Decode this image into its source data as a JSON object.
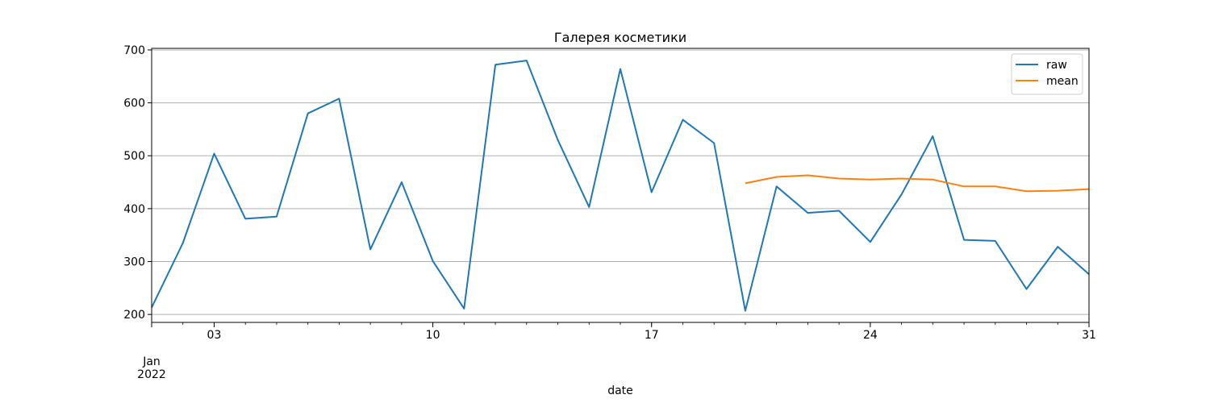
{
  "chart_data": {
    "type": "line",
    "title": "Галерея косметики",
    "xlabel": "date",
    "ylabel": "",
    "ylim": [
      185,
      703
    ],
    "xlim": [
      "2022-01-01",
      "2022-01-31"
    ],
    "x": [
      "2022-01-01",
      "2022-01-02",
      "2022-01-03",
      "2022-01-04",
      "2022-01-05",
      "2022-01-06",
      "2022-01-07",
      "2022-01-08",
      "2022-01-09",
      "2022-01-10",
      "2022-01-11",
      "2022-01-12",
      "2022-01-13",
      "2022-01-14",
      "2022-01-15",
      "2022-01-16",
      "2022-01-17",
      "2022-01-18",
      "2022-01-19",
      "2022-01-20",
      "2022-01-21",
      "2022-01-22",
      "2022-01-23",
      "2022-01-24",
      "2022-01-25",
      "2022-01-26",
      "2022-01-27",
      "2022-01-28",
      "2022-01-29",
      "2022-01-30",
      "2022-01-31"
    ],
    "series": [
      {
        "name": "raw",
        "color": "#1f77b4",
        "values": [
          213,
          335,
          504,
          381,
          385,
          580,
          608,
          323,
          450,
          301,
          211,
          672,
          680,
          530,
          403,
          664,
          431,
          568,
          524,
          207,
          442,
          392,
          396,
          337,
          427,
          537,
          341,
          339,
          248,
          328,
          276
        ]
      },
      {
        "name": "mean",
        "color": "#ff7f0e",
        "values": [
          null,
          null,
          null,
          null,
          null,
          null,
          null,
          null,
          null,
          null,
          null,
          null,
          null,
          null,
          null,
          null,
          null,
          null,
          null,
          448,
          460,
          463,
          457,
          455,
          457,
          455,
          442,
          442,
          433,
          434,
          437
        ]
      }
    ],
    "yticks": [
      200,
      300,
      400,
      500,
      600,
      700
    ],
    "ytick_labels": [
      "200",
      "300",
      "400",
      "500",
      "600",
      "700"
    ],
    "xticks_major": [
      "2022-01-03",
      "2022-01-10",
      "2022-01-17",
      "2022-01-24",
      "2022-01-31"
    ],
    "xtick_labels": [
      "03",
      "10",
      "17",
      "24",
      "31"
    ],
    "x_start_label": [
      "Jan",
      "2022"
    ],
    "grid": "y",
    "legend_position": "top-right"
  }
}
